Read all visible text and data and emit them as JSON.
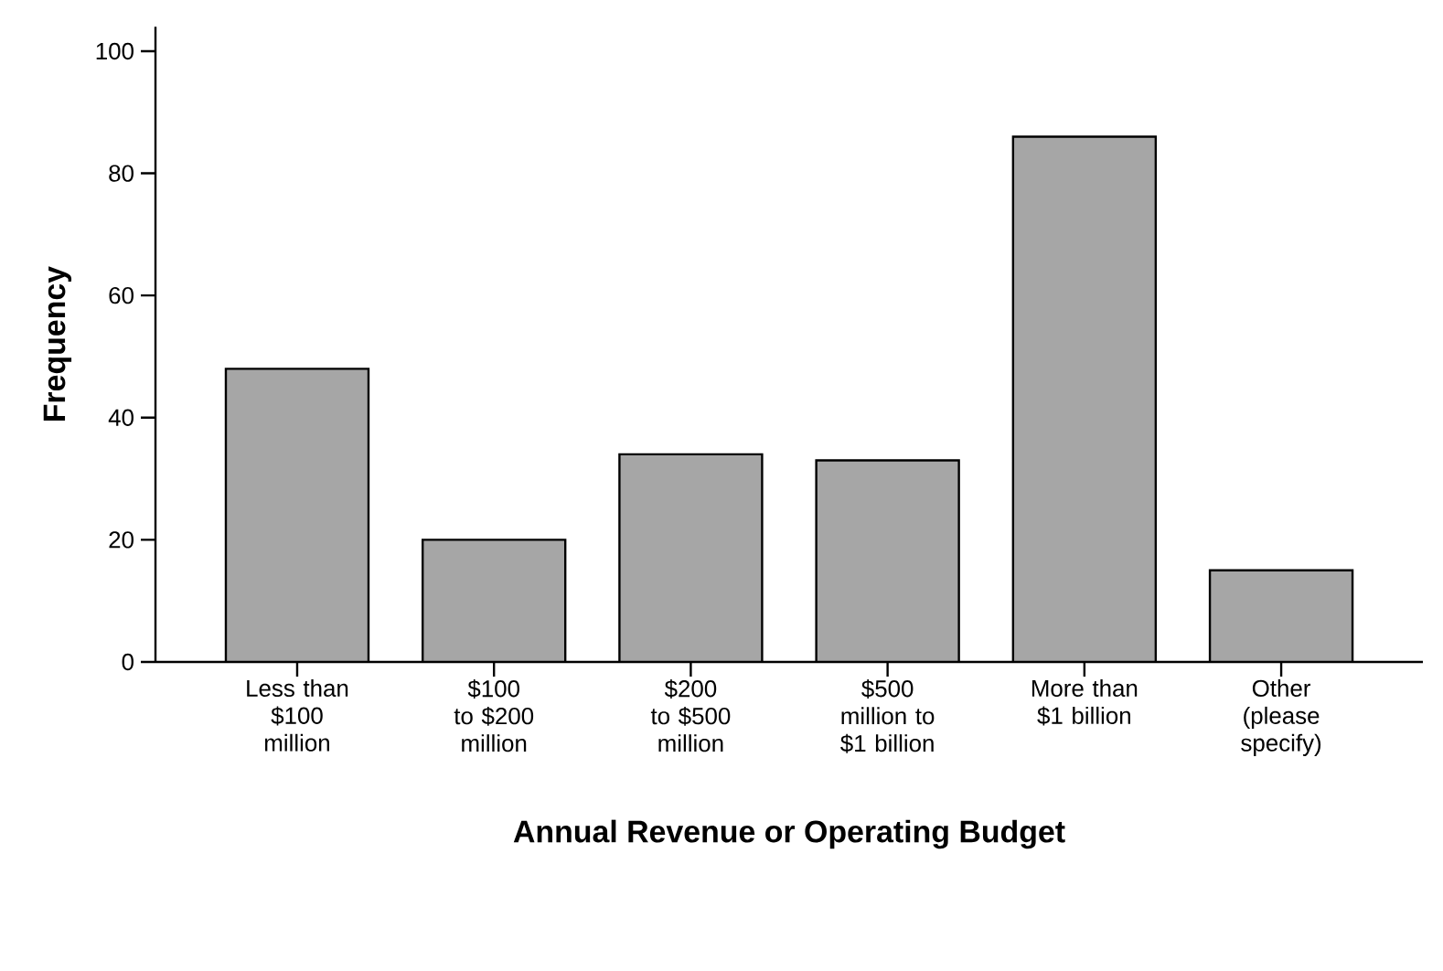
{
  "chart_data": {
    "type": "bar",
    "xlabel": "Annual Revenue or Operating Budget",
    "ylabel": "Frequency",
    "categories": [
      "Less than $100 million",
      "$100 to $200 million",
      "$200 to $500 million",
      "$500 million to $1 billion",
      "More than $1 billion",
      "Other (please specify)"
    ],
    "values": [
      48,
      20,
      34,
      33,
      86,
      15
    ],
    "color": "#a6a6a6",
    "ylim": [
      0,
      104
    ],
    "yticks": [
      0,
      20,
      40,
      60,
      80,
      100
    ],
    "grid": false
  }
}
